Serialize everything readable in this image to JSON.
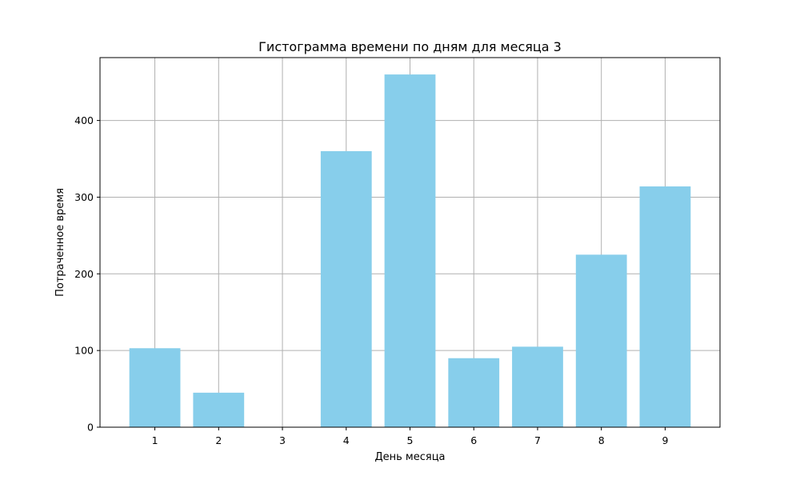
{
  "chart_data": {
    "type": "bar",
    "title": "Гистограмма времени по дням для месяца 3",
    "xlabel": "День месяца",
    "ylabel": "Потраченное время",
    "categories": [
      "1",
      "2",
      "3",
      "4",
      "5",
      "6",
      "7",
      "8",
      "9"
    ],
    "values": [
      103,
      45,
      0,
      360,
      460,
      90,
      105,
      225,
      314
    ],
    "ylim": [
      0,
      482
    ],
    "yticks": [
      0,
      100,
      200,
      300,
      400
    ],
    "grid": true,
    "legend": "none",
    "bar_color": "#87CEEB",
    "grid_color": "#b0b0b0"
  }
}
